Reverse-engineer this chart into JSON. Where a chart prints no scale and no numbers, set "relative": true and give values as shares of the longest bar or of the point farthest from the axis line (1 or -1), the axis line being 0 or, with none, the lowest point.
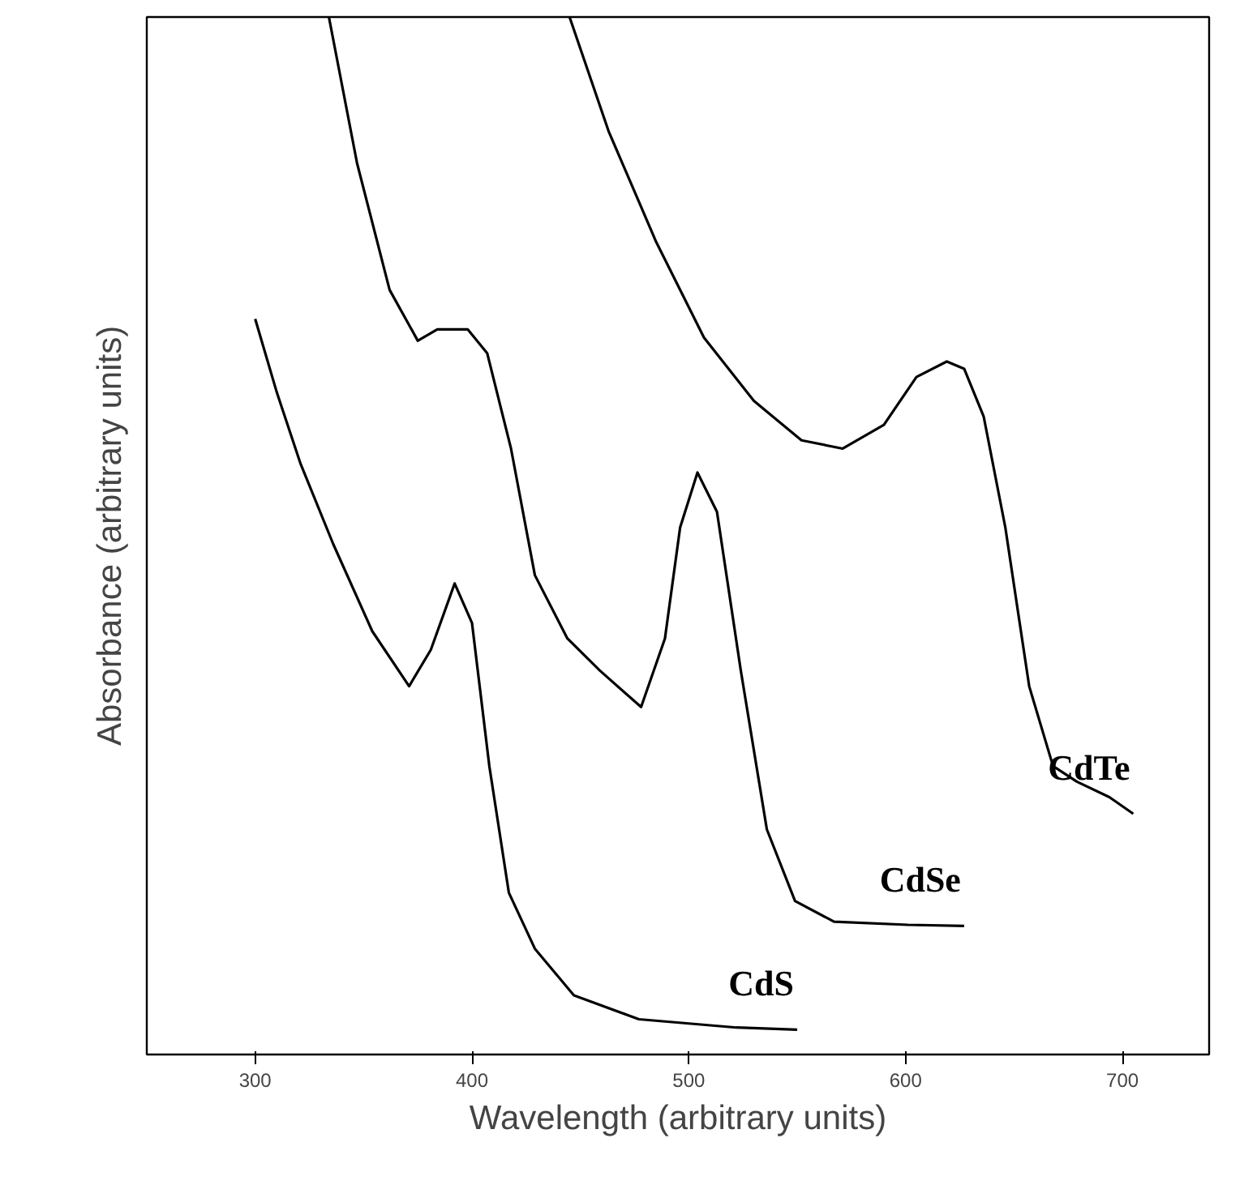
{
  "chart_data": {
    "type": "line",
    "relative": true,
    "xlabel": "Wavelength (arbitrary units)",
    "ylabel": "Absorbance (arbitrary units)",
    "xlim": [
      250,
      740
    ],
    "xticks": [
      300,
      400,
      500,
      600,
      700
    ],
    "grid": false,
    "marker": "none",
    "line_style": "solid",
    "series": [
      {
        "name": "CdS",
        "color": "#000000",
        "x": [
          300,
          310,
          321,
          336,
          354,
          371,
          381,
          392,
          400,
          408,
          417,
          429,
          447,
          477,
          522,
          550
        ],
        "values": [
          0.709,
          0.638,
          0.569,
          0.492,
          0.408,
          0.355,
          0.39,
          0.454,
          0.416,
          0.278,
          0.156,
          0.102,
          0.057,
          0.034,
          0.026,
          0.024
        ]
      },
      {
        "name": "CdSe",
        "color": "#000000",
        "x": [
          334,
          347,
          362,
          375,
          384,
          398,
          407,
          418,
          429,
          444,
          459,
          478,
          489,
          496,
          504,
          513,
          524,
          536,
          549,
          567,
          601,
          627
        ],
        "values": [
          1.0,
          0.859,
          0.737,
          0.688,
          0.699,
          0.699,
          0.676,
          0.584,
          0.462,
          0.401,
          0.37,
          0.335,
          0.401,
          0.508,
          0.561,
          0.523,
          0.37,
          0.217,
          0.148,
          0.128,
          0.125,
          0.124
        ]
      },
      {
        "name": "CdTe",
        "color": "#000000",
        "x": [
          445,
          463,
          485,
          507,
          530,
          552,
          571,
          590,
          605,
          619,
          627,
          636,
          646,
          657,
          668,
          679,
          694,
          705
        ],
        "values": [
          1.0,
          0.89,
          0.783,
          0.691,
          0.63,
          0.592,
          0.584,
          0.607,
          0.653,
          0.668,
          0.661,
          0.615,
          0.508,
          0.355,
          0.278,
          0.263,
          0.248,
          0.232
        ]
      }
    ]
  }
}
